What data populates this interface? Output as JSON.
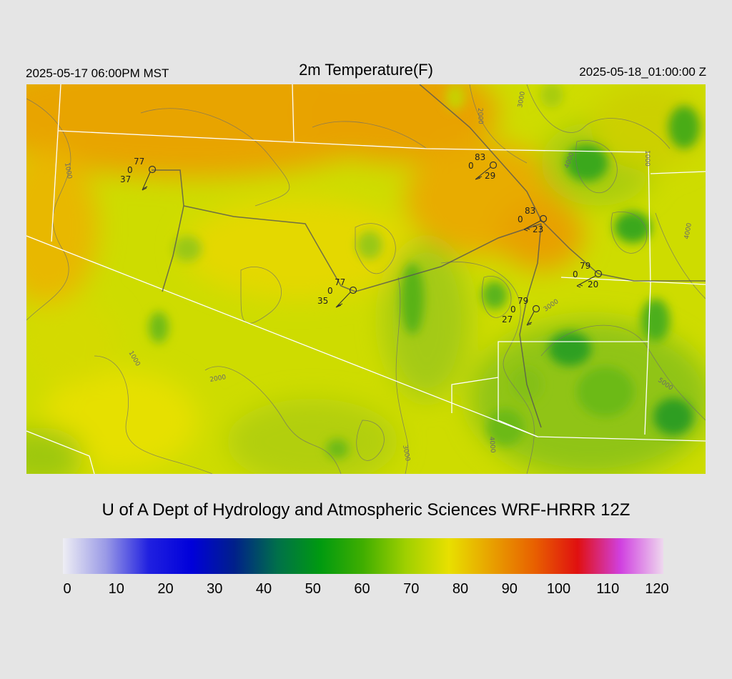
{
  "header": {
    "valid_local": "2025-05-17 06:00PM MST",
    "title": "2m Temperature(F)",
    "valid_utc": "2025-05-18_01:00:00 Z"
  },
  "footer": {
    "credit": "U of A Dept of Hydrology and Atmospheric Sciences WRF-HRRR 12Z"
  },
  "colorbar": {
    "ticks": [
      "0",
      "10",
      "20",
      "30",
      "40",
      "50",
      "60",
      "70",
      "80",
      "90",
      "100",
      "110",
      "120"
    ],
    "stops": [
      "#eeeef4",
      "#9a9ae6",
      "#2020e0",
      "#0000da",
      "#00208a",
      "#00704a",
      "#009a10",
      "#40ae00",
      "#a0d000",
      "#e8e000",
      "#e8a000",
      "#e86000",
      "#e01010",
      "#d040e0",
      "#eed8ee"
    ]
  },
  "stations": [
    {
      "name": "station-1",
      "temp": "77",
      "wind": "0",
      "dewpoint": "37"
    },
    {
      "name": "station-2",
      "temp": "83",
      "wind": "0",
      "dewpoint": "29"
    },
    {
      "name": "station-3",
      "temp": "83",
      "wind": "0",
      "dewpoint": "23"
    },
    {
      "name": "station-4",
      "temp": "79",
      "wind": "0",
      "dewpoint": "20"
    },
    {
      "name": "station-5",
      "temp": "77",
      "wind": "0",
      "dewpoint": "35"
    },
    {
      "name": "station-6",
      "temp": "79",
      "wind": "0",
      "dewpoint": "27"
    }
  ],
  "contour_labels": [
    "1000",
    "1000",
    "1000",
    "2000",
    "2000",
    "3000",
    "3000",
    "3000",
    "4000",
    "4000",
    "4000",
    "5000"
  ]
}
